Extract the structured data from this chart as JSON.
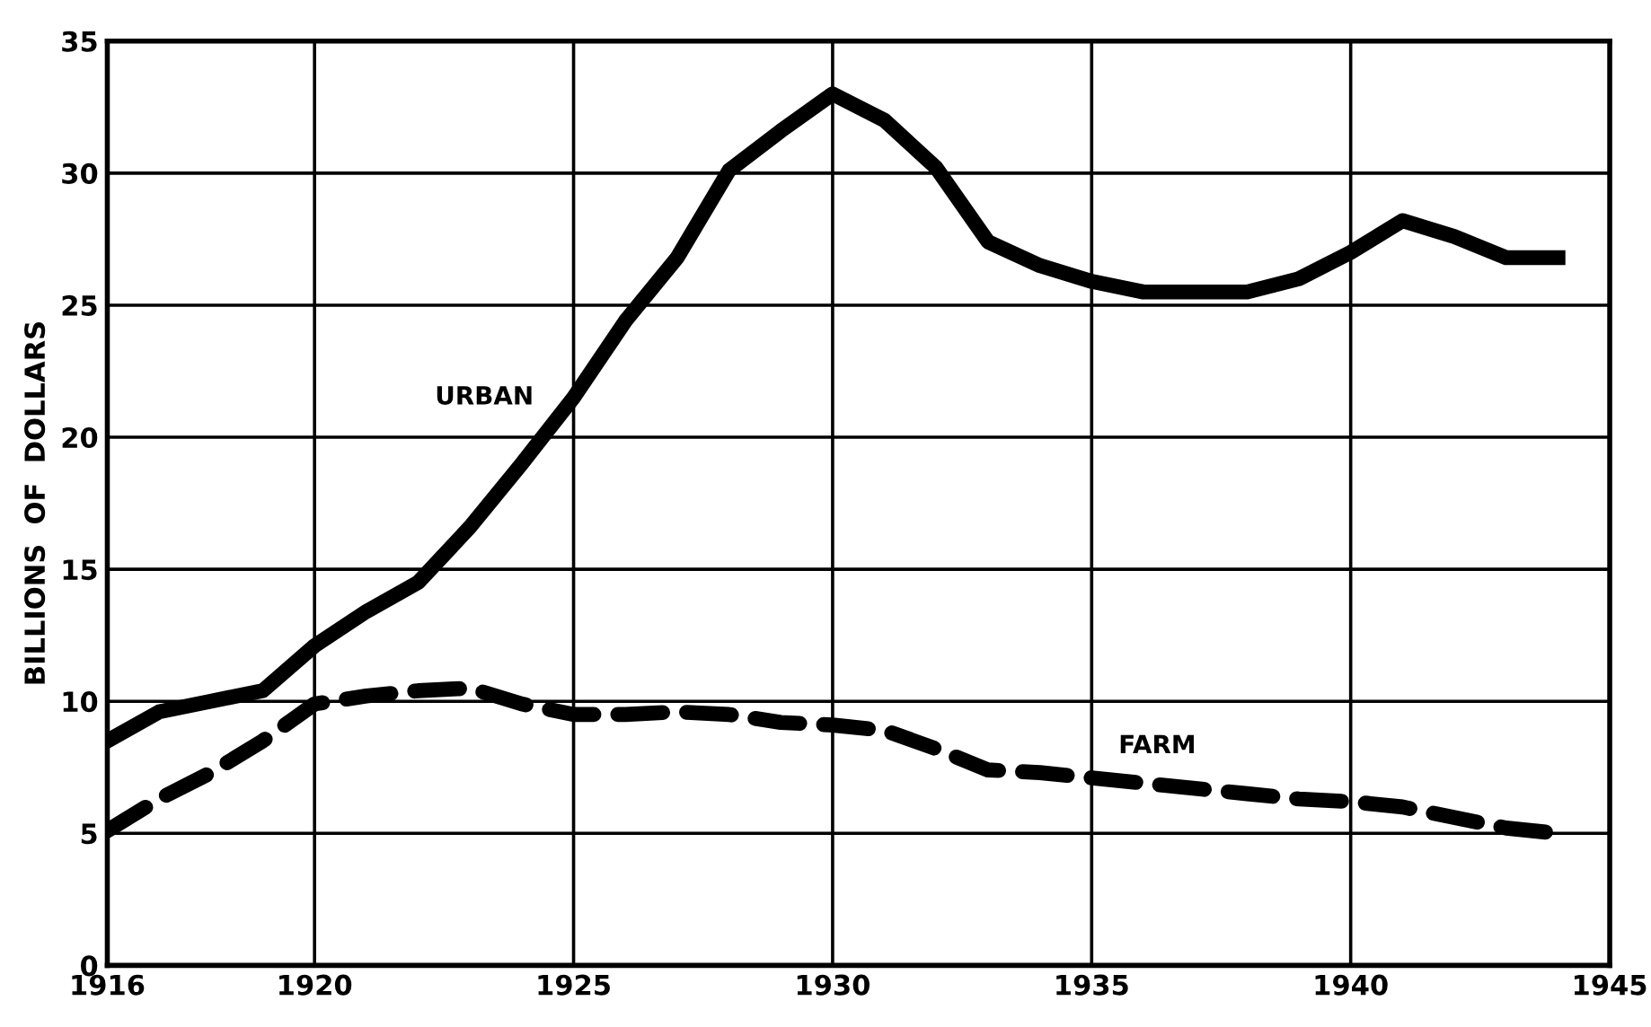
{
  "chart_data": {
    "type": "line",
    "ylabel": "BILLIONS  OF  DOLLARS",
    "x": [
      1916,
      1917,
      1918,
      1919,
      1920,
      1921,
      1922,
      1923,
      1924,
      1925,
      1926,
      1927,
      1928,
      1929,
      1930,
      1931,
      1932,
      1933,
      1934,
      1935,
      1936,
      1937,
      1938,
      1939,
      1940,
      1941,
      1942,
      1943,
      1944
    ],
    "series": [
      {
        "name": "URBAN",
        "color": "#000000",
        "line_style": "solid",
        "values": [
          8.5,
          9.6,
          10.0,
          10.4,
          12.1,
          13.4,
          14.5,
          16.6,
          19.0,
          21.5,
          24.4,
          26.8,
          30.1,
          31.6,
          33.0,
          32.0,
          30.2,
          27.4,
          26.5,
          25.9,
          25.5,
          25.5,
          25.5,
          26.0,
          27.0,
          28.2,
          27.6,
          26.8,
          26.8
        ]
      },
      {
        "name": "FARM",
        "color": "#000000",
        "line_style": "dashed",
        "values": [
          5.1,
          6.3,
          7.3,
          8.5,
          9.9,
          10.2,
          10.4,
          10.5,
          9.9,
          9.5,
          9.5,
          9.6,
          9.5,
          9.2,
          9.1,
          8.9,
          8.2,
          7.4,
          7.3,
          7.1,
          6.9,
          6.7,
          6.5,
          6.3,
          6.2,
          6.0,
          5.6,
          5.2,
          5.0
        ]
      }
    ],
    "xlim": [
      1916,
      1945
    ],
    "xticks": [
      {
        "value": 1916,
        "label": "1916"
      },
      1920,
      1925,
      1930,
      1935,
      1940,
      1945
    ],
    "ylim": [
      0,
      35
    ],
    "yticks": [
      0,
      5,
      10,
      15,
      20,
      25,
      30,
      35
    ],
    "grid": true,
    "legend": false
  }
}
